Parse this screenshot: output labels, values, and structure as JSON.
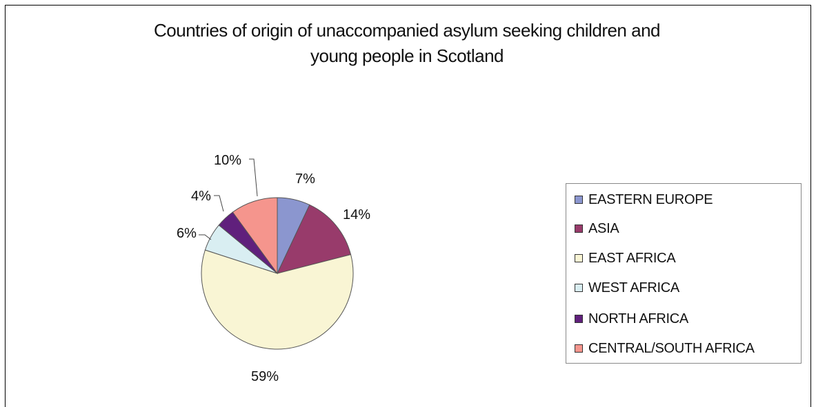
{
  "chart_data": {
    "type": "pie",
    "title_lines": [
      "Countries of origin of unaccompanied asylum seeking children and",
      "young people in Scotland"
    ],
    "slices": [
      {
        "name": "EASTERN EUROPE",
        "value": 7,
        "label": "7%",
        "color": "#8b96cf"
      },
      {
        "name": "ASIA",
        "value": 14,
        "label": "14%",
        "color": "#983b6b"
      },
      {
        "name": "EAST AFRICA",
        "value": 59,
        "label": "59%",
        "color": "#f9f5d4"
      },
      {
        "name": "WEST AFRICA",
        "value": 6,
        "label": "6%",
        "color": "#d9eef2"
      },
      {
        "name": "NORTH AFRICA",
        "value": 4,
        "label": "4%",
        "color": "#60207c"
      },
      {
        "name": "CENTRAL/SOUTH AFRICA",
        "value": 10,
        "label": "10%",
        "color": "#f5958d"
      }
    ],
    "legend_placement": "right"
  }
}
